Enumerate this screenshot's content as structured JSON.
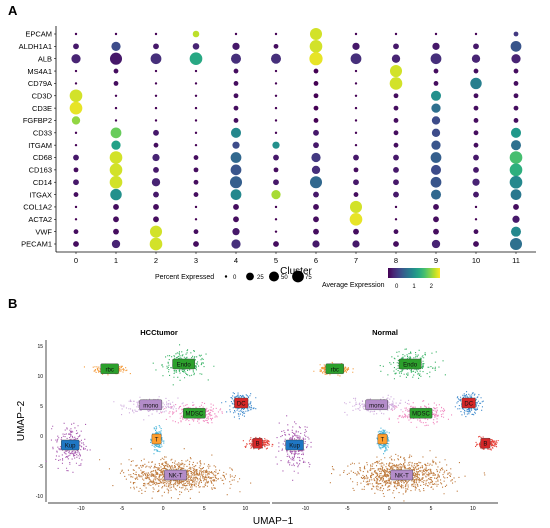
{
  "panel_a": {
    "letter": "A",
    "chart_data": {
      "type": "dotplot",
      "x_categories": [
        "0",
        "1",
        "2",
        "3",
        "4",
        "5",
        "6",
        "7",
        "8",
        "9",
        "10",
        "11"
      ],
      "xlabel": "Cluster",
      "y_genes": [
        "EPCAM",
        "ALDH1A1",
        "ALB",
        "MS4A1",
        "CD79A",
        "CD3D",
        "CD3E",
        "FGFBP2",
        "CD33",
        "ITGAM",
        "CD68",
        "CD163",
        "CD14",
        "ITGAX",
        "COL1A2",
        "ACTA2",
        "VWF",
        "PECAM1"
      ],
      "values": [
        [
          [
            0,
            -0.5
          ],
          [
            0,
            -0.5
          ],
          [
            0,
            -0.5
          ],
          [
            15,
            2.2
          ],
          [
            0,
            -0.5
          ],
          [
            0,
            -0.5
          ],
          [
            80,
            2.3
          ],
          [
            0,
            -0.5
          ],
          [
            0,
            -0.5
          ],
          [
            0,
            -0.5
          ],
          [
            0,
            -0.5
          ],
          [
            5,
            0.0
          ]
        ],
        [
          [
            10,
            -0.3
          ],
          [
            40,
            0.2
          ],
          [
            10,
            -0.3
          ],
          [
            15,
            -0.2
          ],
          [
            20,
            -0.3
          ],
          [
            5,
            -0.4
          ],
          [
            90,
            2.3
          ],
          [
            20,
            -0.3
          ],
          [
            10,
            -0.3
          ],
          [
            20,
            -0.3
          ],
          [
            10,
            -0.3
          ],
          [
            60,
            0.3
          ]
        ],
        [
          [
            40,
            -0.2
          ],
          [
            80,
            -0.3
          ],
          [
            60,
            -0.1
          ],
          [
            90,
            1.3
          ],
          [
            50,
            -0.1
          ],
          [
            50,
            -0.1
          ],
          [
            100,
            2.4
          ],
          [
            60,
            -0.1
          ],
          [
            30,
            -0.2
          ],
          [
            60,
            -0.1
          ],
          [
            30,
            -0.2
          ],
          [
            40,
            -0.2
          ]
        ],
        [
          [
            0,
            -0.5
          ],
          [
            5,
            -0.4
          ],
          [
            0,
            -0.5
          ],
          [
            0,
            -0.5
          ],
          [
            5,
            -0.4
          ],
          [
            0,
            -0.5
          ],
          [
            5,
            -0.5
          ],
          [
            0,
            -0.5
          ],
          [
            80,
            2.3
          ],
          [
            5,
            -0.4
          ],
          [
            5,
            -0.4
          ],
          [
            5,
            -0.4
          ]
        ],
        [
          [
            0,
            -0.5
          ],
          [
            5,
            -0.4
          ],
          [
            0,
            -0.5
          ],
          [
            0,
            -0.5
          ],
          [
            5,
            -0.4
          ],
          [
            0,
            -0.5
          ],
          [
            5,
            -0.5
          ],
          [
            0,
            -0.5
          ],
          [
            90,
            2.3
          ],
          [
            5,
            -0.4
          ],
          [
            70,
            0.8
          ],
          [
            5,
            -0.4
          ]
        ],
        [
          [
            90,
            2.3
          ],
          [
            0,
            -0.5
          ],
          [
            0,
            -0.5
          ],
          [
            0,
            -0.5
          ],
          [
            5,
            -0.4
          ],
          [
            0,
            -0.5
          ],
          [
            5,
            -0.5
          ],
          [
            0,
            -0.5
          ],
          [
            5,
            -0.4
          ],
          [
            50,
            1.0
          ],
          [
            5,
            -0.4
          ],
          [
            5,
            -0.4
          ]
        ],
        [
          [
            90,
            2.4
          ],
          [
            0,
            -0.5
          ],
          [
            0,
            -0.5
          ],
          [
            0,
            -0.5
          ],
          [
            5,
            -0.4
          ],
          [
            0,
            -0.5
          ],
          [
            5,
            -0.5
          ],
          [
            0,
            -0.5
          ],
          [
            5,
            -0.4
          ],
          [
            40,
            0.6
          ],
          [
            5,
            -0.4
          ],
          [
            5,
            -0.4
          ]
        ],
        [
          [
            30,
            2.0
          ],
          [
            0,
            -0.5
          ],
          [
            0,
            -0.5
          ],
          [
            0,
            -0.5
          ],
          [
            5,
            -0.4
          ],
          [
            0,
            -0.5
          ],
          [
            5,
            -0.5
          ],
          [
            0,
            -0.5
          ],
          [
            5,
            -0.4
          ],
          [
            30,
            0.2
          ],
          [
            5,
            -0.4
          ],
          [
            5,
            -0.4
          ]
        ],
        [
          [
            0,
            -0.5
          ],
          [
            60,
            1.8
          ],
          [
            10,
            -0.3
          ],
          [
            0,
            -0.5
          ],
          [
            50,
            0.9
          ],
          [
            0,
            -0.5
          ],
          [
            10,
            -0.3
          ],
          [
            0,
            -0.5
          ],
          [
            5,
            -0.4
          ],
          [
            30,
            0.2
          ],
          [
            5,
            -0.4
          ],
          [
            50,
            1.1
          ]
        ],
        [
          [
            0,
            -0.5
          ],
          [
            40,
            1.2
          ],
          [
            5,
            -0.4
          ],
          [
            0,
            -0.5
          ],
          [
            20,
            0.2
          ],
          [
            20,
            1.0
          ],
          [
            10,
            -0.3
          ],
          [
            0,
            -0.5
          ],
          [
            5,
            -0.4
          ],
          [
            40,
            0.3
          ],
          [
            5,
            -0.4
          ],
          [
            50,
            0.6
          ]
        ],
        [
          [
            10,
            -0.3
          ],
          [
            90,
            2.3
          ],
          [
            20,
            -0.2
          ],
          [
            5,
            -0.4
          ],
          [
            60,
            0.5
          ],
          [
            10,
            -0.3
          ],
          [
            40,
            0.0
          ],
          [
            10,
            -0.3
          ],
          [
            10,
            -0.3
          ],
          [
            60,
            0.4
          ],
          [
            10,
            -0.3
          ],
          [
            90,
            1.6
          ]
        ],
        [
          [
            5,
            -0.4
          ],
          [
            90,
            2.3
          ],
          [
            10,
            -0.3
          ],
          [
            5,
            -0.4
          ],
          [
            60,
            0.3
          ],
          [
            5,
            -0.4
          ],
          [
            30,
            -0.1
          ],
          [
            5,
            -0.4
          ],
          [
            10,
            -0.3
          ],
          [
            50,
            0.2
          ],
          [
            10,
            -0.3
          ],
          [
            90,
            1.4
          ]
        ],
        [
          [
            10,
            -0.3
          ],
          [
            90,
            2.3
          ],
          [
            30,
            -0.2
          ],
          [
            5,
            -0.4
          ],
          [
            80,
            0.4
          ],
          [
            10,
            -0.3
          ],
          [
            80,
            0.5
          ],
          [
            10,
            -0.3
          ],
          [
            10,
            -0.3
          ],
          [
            60,
            0.3
          ],
          [
            20,
            -0.2
          ],
          [
            90,
            0.9
          ]
        ],
        [
          [
            5,
            -0.4
          ],
          [
            70,
            1.0
          ],
          [
            10,
            -0.3
          ],
          [
            5,
            -0.4
          ],
          [
            60,
            0.9
          ],
          [
            40,
            2.1
          ],
          [
            10,
            -0.3
          ],
          [
            5,
            -0.4
          ],
          [
            10,
            -0.3
          ],
          [
            50,
            0.5
          ],
          [
            10,
            -0.3
          ],
          [
            60,
            0.7
          ]
        ],
        [
          [
            0,
            -0.5
          ],
          [
            10,
            -0.4
          ],
          [
            10,
            -0.4
          ],
          [
            0,
            -0.5
          ],
          [
            10,
            -0.4
          ],
          [
            0,
            -0.5
          ],
          [
            10,
            -0.4
          ],
          [
            80,
            2.3
          ],
          [
            0,
            -0.5
          ],
          [
            10,
            -0.4
          ],
          [
            0,
            -0.5
          ],
          [
            10,
            -0.4
          ]
        ],
        [
          [
            0,
            -0.5
          ],
          [
            10,
            -0.4
          ],
          [
            10,
            -0.4
          ],
          [
            0,
            -0.5
          ],
          [
            10,
            -0.4
          ],
          [
            0,
            -0.5
          ],
          [
            10,
            -0.4
          ],
          [
            90,
            2.4
          ],
          [
            0,
            -0.5
          ],
          [
            10,
            -0.4
          ],
          [
            0,
            -0.5
          ],
          [
            20,
            -0.3
          ]
        ],
        [
          [
            5,
            -0.4
          ],
          [
            10,
            -0.4
          ],
          [
            80,
            2.3
          ],
          [
            5,
            -0.4
          ],
          [
            20,
            -0.3
          ],
          [
            0,
            -0.5
          ],
          [
            10,
            -0.4
          ],
          [
            10,
            -0.4
          ],
          [
            5,
            -0.4
          ],
          [
            10,
            -0.4
          ],
          [
            5,
            -0.4
          ],
          [
            50,
            0.9
          ]
        ],
        [
          [
            10,
            -0.4
          ],
          [
            30,
            -0.2
          ],
          [
            90,
            2.3
          ],
          [
            10,
            -0.4
          ],
          [
            40,
            -0.1
          ],
          [
            10,
            -0.4
          ],
          [
            20,
            -0.3
          ],
          [
            20,
            -0.3
          ],
          [
            10,
            -0.4
          ],
          [
            30,
            -0.2
          ],
          [
            10,
            -0.4
          ],
          [
            80,
            0.6
          ]
        ]
      ],
      "size_legend": {
        "title": "Percent Expressed",
        "breaks": [
          "0",
          "25",
          "50",
          "75"
        ]
      },
      "color_legend": {
        "title": "Average Expression",
        "ticks": [
          "0",
          "1",
          "2"
        ],
        "range": [
          -0.5,
          2.5
        ]
      }
    }
  },
  "panel_b": {
    "letter": "B",
    "chart_data": {
      "type": "scatter",
      "xlabel": "UMAP−1",
      "ylabel": "UMAP−2",
      "panels": [
        {
          "title": "HCCtumor",
          "x_ticks": [
            "-10",
            "-5",
            "0",
            "5",
            "10"
          ],
          "y_ticks": [
            "15",
            "10",
            "5",
            "0",
            "-5",
            "-10"
          ]
        },
        {
          "title": "Normal",
          "x_ticks": [
            "-10",
            "-5",
            "0",
            "5",
            "10"
          ]
        }
      ],
      "xlim": [
        -14,
        13
      ],
      "ylim": [
        -11,
        16
      ],
      "clusters": [
        {
          "label": "rbc",
          "color": "#f28c1f",
          "label_bg": "#2ca02c",
          "center": [
            -6.5,
            11.2
          ],
          "spread": [
            1.8,
            0.7
          ]
        },
        {
          "label": "Endo",
          "color": "#15a64a",
          "label_bg": "#2ca02c",
          "center": [
            2.5,
            12
          ],
          "spread": [
            2.6,
            2.0
          ]
        },
        {
          "label": "mono",
          "color": "#c8a0d8",
          "label_bg": "#b38cc9",
          "center": [
            -1.5,
            5.2
          ],
          "spread": [
            3.2,
            1.2
          ]
        },
        {
          "label": "MDSC",
          "color": "#ef77b6",
          "label_bg": "#2ca02c",
          "center": [
            3.8,
            3.8
          ],
          "spread": [
            2.8,
            1.6
          ]
        },
        {
          "label": "DC",
          "color": "#1f77c4",
          "label_bg": "#d62728",
          "center": [
            9.5,
            5.5
          ],
          "spread": [
            1.3,
            1.6
          ]
        },
        {
          "label": "T",
          "color": "#2aa9d4",
          "label_bg": "#ff9f2e",
          "center": [
            -0.8,
            -0.5
          ],
          "spread": [
            0.6,
            1.6
          ]
        },
        {
          "label": "B",
          "color": "#e3241b",
          "label_bg": "#d62728",
          "center": [
            11.5,
            -1.2
          ],
          "spread": [
            1.2,
            0.8
          ]
        },
        {
          "label": "Kup",
          "color": "#9a3fa2",
          "label_bg": "#1f77c4",
          "center": [
            -11.3,
            -1.5
          ],
          "spread": [
            1.8,
            3.5
          ]
        },
        {
          "label": "NK-T",
          "color": "#b5651d",
          "label_bg": "#b38cc9",
          "center": [
            1.5,
            -6.5
          ],
          "spread": [
            5.5,
            2.5
          ]
        }
      ]
    }
  }
}
